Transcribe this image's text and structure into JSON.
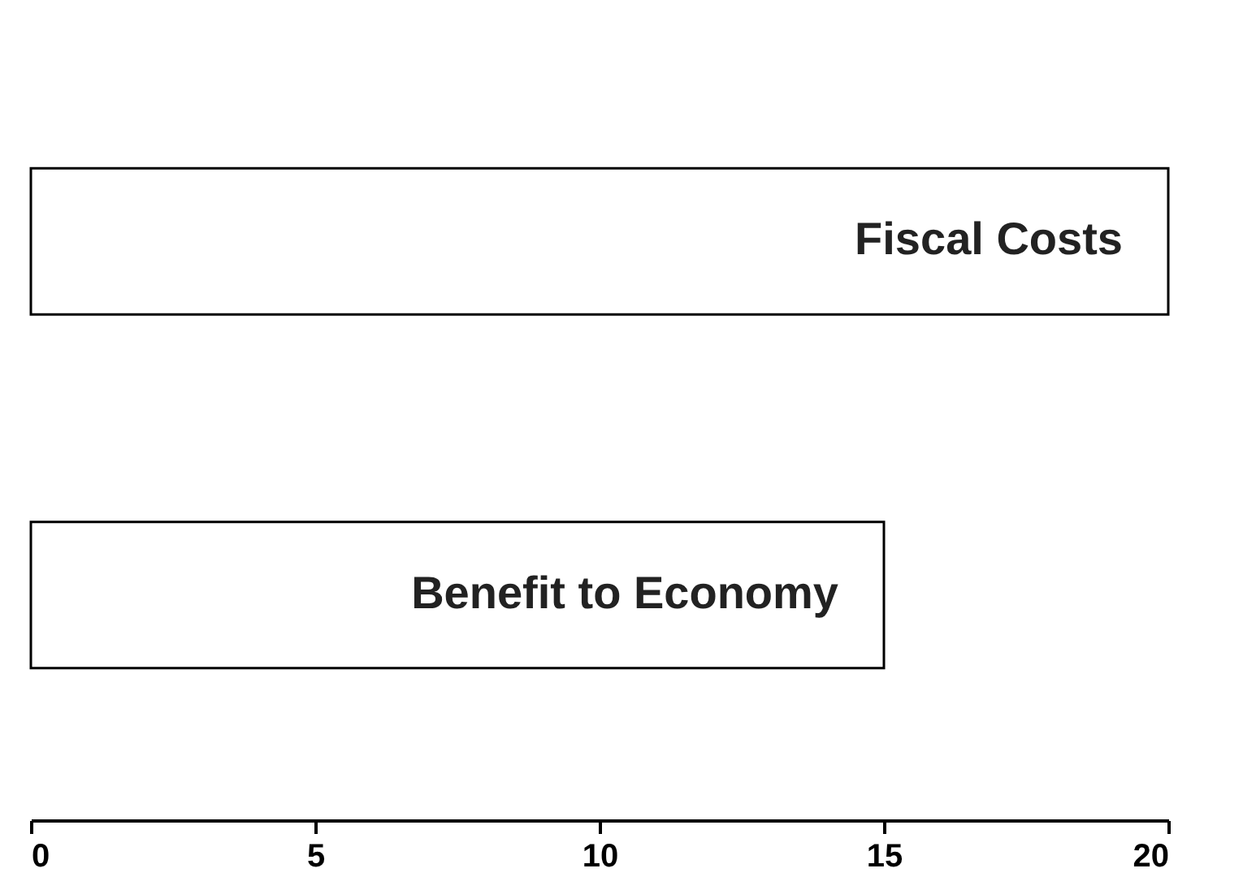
{
  "chart_data": {
    "type": "bar",
    "orientation": "horizontal",
    "categories": [
      "Fiscal Costs",
      "Benefit to Economy"
    ],
    "values": [
      20,
      15
    ],
    "color": "#ffffff",
    "xlim": [
      0,
      20
    ],
    "xticks": [
      0,
      5,
      10,
      15,
      20
    ],
    "grid": false,
    "tick_labels": "x"
  }
}
